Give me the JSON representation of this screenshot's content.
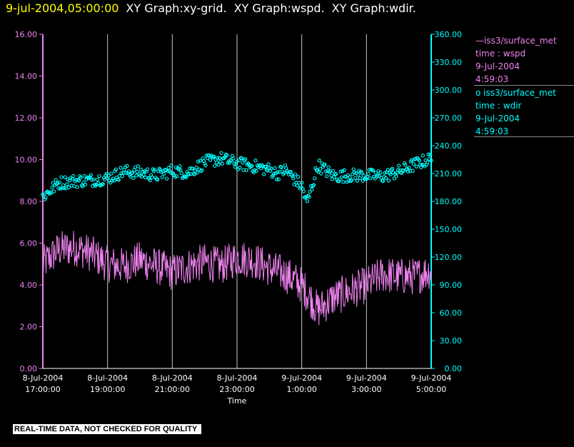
{
  "header": {
    "timestamp": "9-jul-2004,05:00:00",
    "titles": [
      "XY Graph:xy-grid.",
      "XY Graph:wspd.",
      "XY Graph:wdir."
    ]
  },
  "legend": [
    {
      "symbol": "line",
      "lines": [
        "—iss3/surface_met",
        "time : wspd",
        "9-Jul-2004",
        "4:59:03"
      ],
      "color": "#ee82ee"
    },
    {
      "symbol": "circle",
      "lines": [
        "o iss3/surface_met",
        "time : wdir",
        "9-Jul-2004",
        "4:59:03"
      ],
      "color": "#00ffff"
    }
  ],
  "warning": "REAL-TIME DATA, NOT CHECKED FOR QUALITY",
  "chart_data": {
    "type": "line",
    "xlabel": "Time",
    "x_ticks": [
      {
        "date": "8-Jul-2004",
        "time": "17:00:00"
      },
      {
        "date": "8-Jul-2004",
        "time": "19:00:00"
      },
      {
        "date": "8-Jul-2004",
        "time": "21:00:00"
      },
      {
        "date": "8-Jul-2004",
        "time": "23:00:00"
      },
      {
        "date": "9-Jul-2004",
        "time": "1:00:00"
      },
      {
        "date": "9-Jul-2004",
        "time": "3:00:00"
      },
      {
        "date": "9-Jul-2004",
        "time": "5:00:00"
      }
    ],
    "y_left": {
      "range": [
        0,
        16
      ],
      "ticks": [
        "0.00",
        "2.00",
        "4.00",
        "6.00",
        "8.00",
        "10.00",
        "12.00",
        "14.00",
        "16.00"
      ],
      "color": "#ee82ee"
    },
    "y_right": {
      "range": [
        0,
        360
      ],
      "ticks": [
        "0.00",
        "30.00",
        "60.00",
        "90.00",
        "120.00",
        "150.00",
        "180.00",
        "210.00",
        "240.00",
        "270.00",
        "300.00",
        "330.00",
        "360.00"
      ],
      "color": "#00ffff"
    },
    "grid": "vertical",
    "series": [
      {
        "name": "iss3/surface_met time : wspd",
        "axis": "left",
        "style": "line",
        "color": "#ee82ee",
        "times": [
          "8-Jul-2004 17:00",
          "8-Jul-2004 17:30",
          "8-Jul-2004 18:00",
          "8-Jul-2004 18:30",
          "8-Jul-2004 19:00",
          "8-Jul-2004 19:30",
          "8-Jul-2004 20:00",
          "8-Jul-2004 20:30",
          "8-Jul-2004 21:00",
          "8-Jul-2004 21:30",
          "8-Jul-2004 22:00",
          "8-Jul-2004 22:30",
          "8-Jul-2004 23:00",
          "8-Jul-2004 23:30",
          "9-Jul-2004 00:00",
          "9-Jul-2004 00:30",
          "9-Jul-2004 01:00",
          "9-Jul-2004 01:30",
          "9-Jul-2004 02:00",
          "9-Jul-2004 02:30",
          "9-Jul-2004 03:00",
          "9-Jul-2004 03:30",
          "9-Jul-2004 04:00",
          "9-Jul-2004 04:30",
          "9-Jul-2004 05:00"
        ],
        "values": [
          5.0,
          5.7,
          5.8,
          5.5,
          5.0,
          4.9,
          5.2,
          4.9,
          4.6,
          4.9,
          5.1,
          4.9,
          5.3,
          5.2,
          4.8,
          4.5,
          4.0,
          2.8,
          3.4,
          3.7,
          4.0,
          4.5,
          4.4,
          4.4,
          4.7
        ]
      },
      {
        "name": "iss3/surface_met time : wdir",
        "axis": "right",
        "style": "circles",
        "color": "#00ffff",
        "times": [
          "8-Jul-2004 17:00",
          "8-Jul-2004 17:30",
          "8-Jul-2004 18:00",
          "8-Jul-2004 18:30",
          "8-Jul-2004 19:00",
          "8-Jul-2004 19:30",
          "8-Jul-2004 20:00",
          "8-Jul-2004 20:30",
          "8-Jul-2004 21:00",
          "8-Jul-2004 21:30",
          "8-Jul-2004 22:00",
          "8-Jul-2004 22:30",
          "8-Jul-2004 23:00",
          "8-Jul-2004 23:30",
          "9-Jul-2004 00:00",
          "9-Jul-2004 00:15",
          "9-Jul-2004 00:30",
          "9-Jul-2004 01:00",
          "9-Jul-2004 01:10",
          "9-Jul-2004 01:30",
          "9-Jul-2004 02:00",
          "9-Jul-2004 02:30",
          "9-Jul-2004 03:00",
          "9-Jul-2004 03:30",
          "9-Jul-2004 04:00",
          "9-Jul-2004 04:30",
          "9-Jul-2004 05:00"
        ],
        "values": [
          185,
          200,
          202,
          203,
          205,
          212,
          211,
          208,
          213,
          211,
          222,
          226,
          221,
          218,
          214,
          210,
          214,
          196,
          178,
          219,
          207,
          208,
          208,
          207,
          212,
          220,
          226
        ]
      }
    ]
  }
}
